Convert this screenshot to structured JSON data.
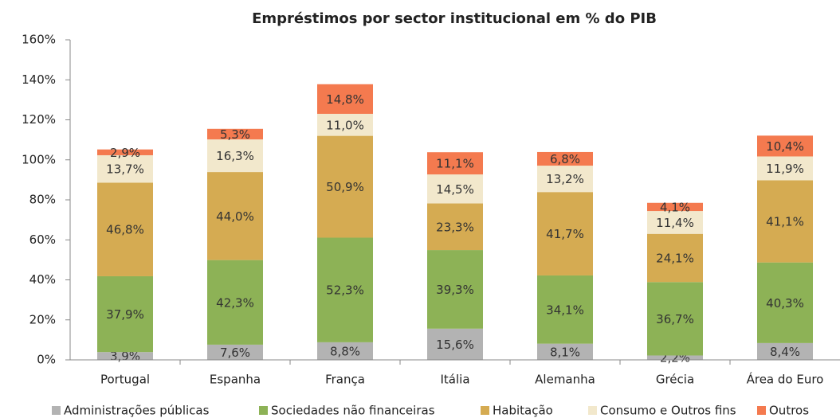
{
  "chart_data": {
    "type": "stacked_bar",
    "title": "Empréstimos por sector institucional em % do PIB",
    "categories": [
      "Portugal",
      "Espanha",
      "França",
      "Itália",
      "Alemanha",
      "Grécia",
      "Área do Euro"
    ],
    "series": [
      {
        "name": "Administrações públicas",
        "color": "#b3b3b3",
        "values": [
          3.9,
          7.6,
          8.8,
          15.6,
          8.1,
          2.2,
          8.4
        ],
        "value_labels": [
          "3,9%",
          "7,6%",
          "8,8%",
          "15,6%",
          "8,1%",
          "2,2%",
          "8,4%"
        ]
      },
      {
        "name": "Sociedades não financeiras",
        "color": "#8db256",
        "values": [
          37.9,
          42.3,
          52.3,
          39.3,
          34.1,
          36.7,
          40.3
        ],
        "value_labels": [
          "37,9%",
          "42,3%",
          "52,3%",
          "39,3%",
          "34,1%",
          "36,7%",
          "40,3%"
        ]
      },
      {
        "name": "Habitação",
        "color": "#d5ab52",
        "values": [
          46.8,
          44.0,
          50.9,
          23.3,
          41.7,
          24.1,
          41.1
        ],
        "value_labels": [
          "46,8%",
          "44,0%",
          "50,9%",
          "23,3%",
          "41,7%",
          "24,1%",
          "41,1%"
        ]
      },
      {
        "name": "Consumo e Outros fins",
        "color": "#f2e8cc",
        "values": [
          13.7,
          16.3,
          11.0,
          14.5,
          13.2,
          11.4,
          11.9
        ],
        "value_labels": [
          "13,7%",
          "16,3%",
          "11,0%",
          "14,5%",
          "13,2%",
          "11,4%",
          "11,9%"
        ]
      },
      {
        "name": "Outros",
        "color": "#f47a4f",
        "values": [
          2.9,
          5.3,
          14.8,
          11.1,
          6.8,
          4.1,
          10.4
        ],
        "value_labels": [
          "2,9%",
          "5,3%",
          "14,8%",
          "11,1%",
          "6,8%",
          "4,1%",
          "10,4%"
        ]
      }
    ],
    "ylim": [
      0,
      160
    ],
    "yticks": [
      {
        "value": 0,
        "label": "0%"
      },
      {
        "value": 20,
        "label": "20%"
      },
      {
        "value": 40,
        "label": "40%"
      },
      {
        "value": 60,
        "label": "60%"
      },
      {
        "value": 80,
        "label": "80%"
      },
      {
        "value": 100,
        "label": "100%"
      },
      {
        "value": 120,
        "label": "120%"
      },
      {
        "value": 140,
        "label": "140%"
      },
      {
        "value": 160,
        "label": "160%"
      }
    ],
    "legend": "bottom"
  }
}
